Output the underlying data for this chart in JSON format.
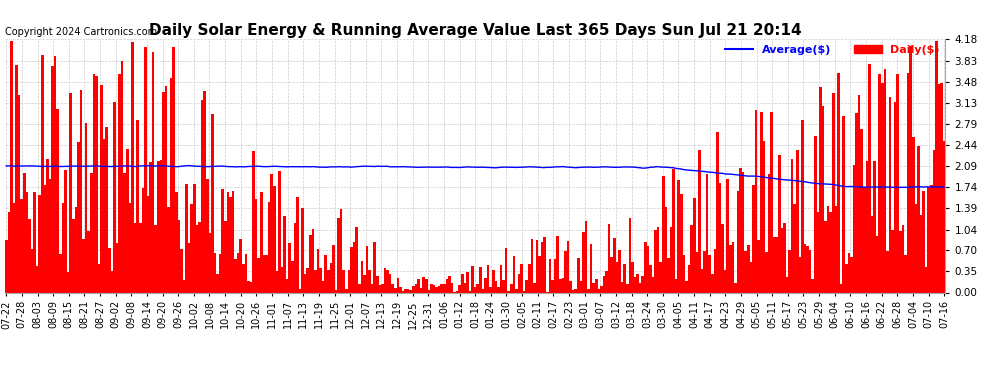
{
  "title": "Daily Solar Energy & Running Average Value Last 365 Days Sun Jul 21 20:14",
  "copyright": "Copyright 2024 Cartronics.com",
  "ylabel_right_ticks": [
    0.0,
    0.35,
    0.7,
    1.04,
    1.39,
    1.74,
    2.09,
    2.44,
    2.79,
    3.13,
    3.48,
    3.83,
    4.18
  ],
  "ylim": [
    0.0,
    4.18
  ],
  "bar_color": "#ff0000",
  "avg_color": "#0000ff",
  "legend_avg_label": "Average($)",
  "legend_daily_label": "Daily($)",
  "background_color": "#ffffff",
  "grid_color": "#cccccc",
  "n_days": 365,
  "title_fontsize": 11,
  "tick_fontsize": 7.5,
  "copyright_fontsize": 7,
  "x_tick_labels": [
    "07-22",
    "07-28",
    "08-03",
    "08-09",
    "08-15",
    "08-21",
    "08-27",
    "09-02",
    "09-08",
    "09-14",
    "09-20",
    "09-26",
    "10-02",
    "10-08",
    "10-14",
    "10-20",
    "10-26",
    "11-01",
    "11-07",
    "11-13",
    "11-19",
    "11-25",
    "12-01",
    "12-07",
    "12-13",
    "12-19",
    "12-25",
    "12-31",
    "01-06",
    "01-12",
    "01-18",
    "01-24",
    "01-30",
    "02-05",
    "02-11",
    "02-17",
    "02-23",
    "03-01",
    "03-07",
    "03-12",
    "03-18",
    "03-24",
    "03-30",
    "04-05",
    "04-11",
    "04-17",
    "04-23",
    "04-29",
    "05-05",
    "05-11",
    "05-17",
    "05-23",
    "05-29",
    "06-04",
    "06-10",
    "06-16",
    "06-22",
    "06-28",
    "07-04",
    "07-10",
    "07-16"
  ]
}
